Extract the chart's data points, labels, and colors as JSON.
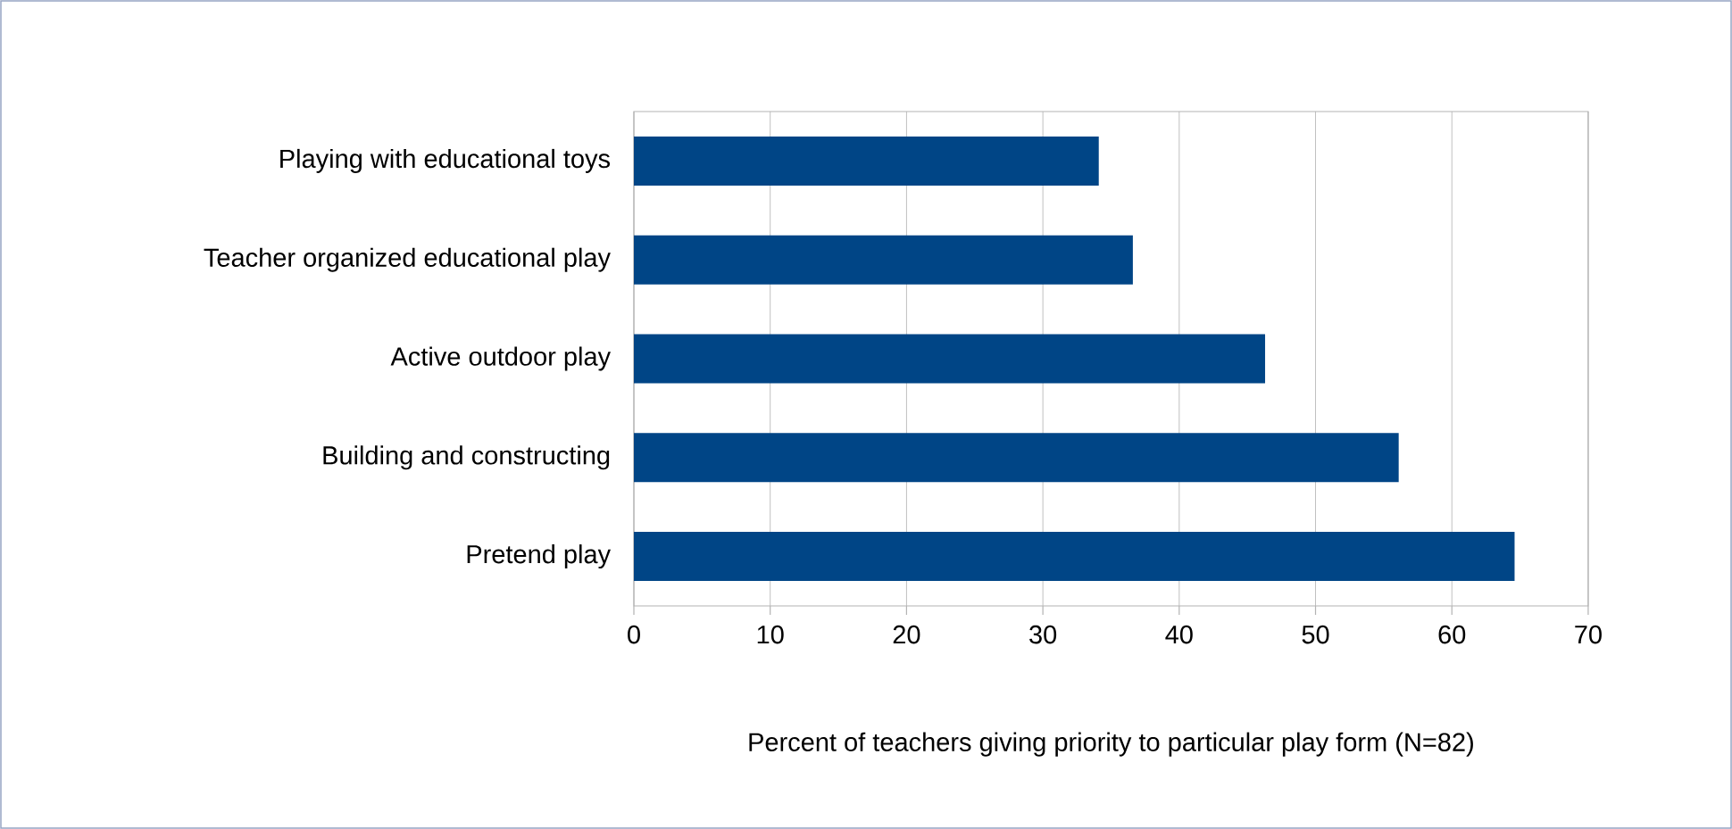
{
  "chart_data": {
    "type": "bar",
    "orientation": "horizontal",
    "categories": [
      "Playing with educational toys",
      "Teacher organized educational play",
      "Active outdoor play",
      "Building and constructing",
      "Pretend play"
    ],
    "values": [
      34.1,
      36.6,
      46.3,
      56.1,
      64.6
    ],
    "color": "#004586",
    "xlabel": "Percent of teachers giving priority to particular play form (N=82)",
    "xlim": [
      0,
      70
    ],
    "xticks": [
      0,
      10,
      20,
      30,
      40,
      50,
      60,
      70
    ],
    "grid": "x"
  }
}
